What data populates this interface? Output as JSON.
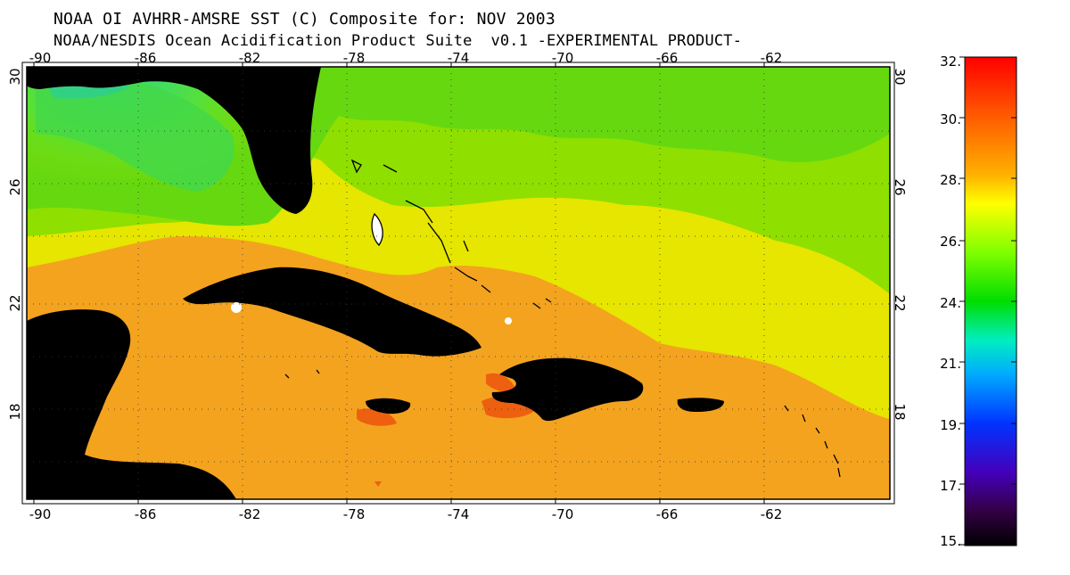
{
  "header": {
    "title": "NOAA OI AVHRR-AMSRE SST (C) Composite for: NOV 2003",
    "subtitle": "NOAA/NESDIS Ocean Acidification Product Suite  v0.1 -EXPERIMENTAL PRODUCT-"
  },
  "map": {
    "lon_ticks": [
      "-90",
      "-86",
      "-82",
      "-78",
      "-74",
      "-70",
      "-66",
      "-62"
    ],
    "lat_ticks": [
      "30",
      "26",
      "22",
      "18"
    ],
    "colors": {
      "land": "#000000",
      "ocean_warm": "#f5a623",
      "ocean_mid": "#e8e600",
      "ocean_cool": "#8ae000",
      "ocean_cold": "#33d24a"
    }
  },
  "colorbar": {
    "labels": [
      "32.",
      "30.",
      "28.",
      "26.",
      "24.",
      "21.",
      "19.",
      "17.",
      "15."
    ],
    "colors": [
      "#ff0000",
      "#ff7f00",
      "#ffcc00",
      "#ffff00",
      "#99ff00",
      "#00dd00",
      "#00ffaa",
      "#00aaff",
      "#0044ff",
      "#2200cc",
      "#440088",
      "#000000"
    ]
  }
}
